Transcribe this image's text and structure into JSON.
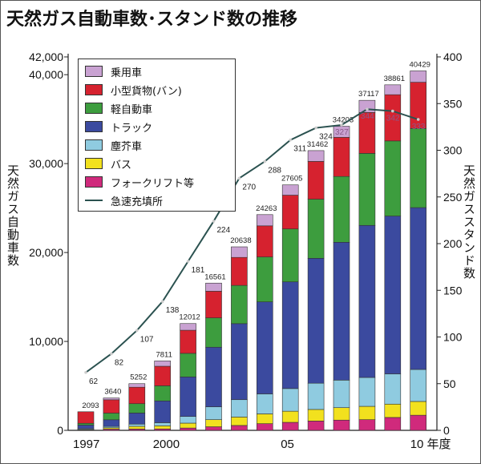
{
  "title": "天然ガス自動車数･スタンド数の推移",
  "chart_data": {
    "type": "bar",
    "title": "天然ガス自動車数･スタンド数の推移",
    "categories": [
      "1997",
      "1998",
      "1999",
      "2000",
      "2001",
      "2002",
      "2003",
      "2004",
      "2005",
      "2006",
      "2007",
      "2008",
      "2009",
      "2010"
    ],
    "x_tick_labels": [
      "1997",
      "2000",
      "05",
      "10 年度"
    ],
    "x_tick_index": [
      0,
      3,
      8,
      13
    ],
    "ylabel_left": "天然ガス自動車数",
    "ylabel_right": "天然ガススタンド数",
    "ylim_left": [
      0,
      42000
    ],
    "ylim_right": [
      0,
      400
    ],
    "left_ticks": [
      "0",
      "10,000",
      "20,000",
      "30,000",
      "40,000",
      "42,000"
    ],
    "left_tick_values": [
      0,
      10000,
      20000,
      30000,
      40000,
      42000
    ],
    "right_ticks": [
      0,
      50,
      100,
      150,
      200,
      250,
      300,
      350,
      400
    ],
    "stacked": true,
    "legend_position": "top-left",
    "grid": false,
    "series": [
      {
        "name": "フォークリフト等",
        "color": "#d02a7c",
        "values": [
          40,
          140,
          150,
          160,
          260,
          400,
          550,
          750,
          900,
          1050,
          1150,
          1200,
          1450,
          1700
        ]
      },
      {
        "name": "バス",
        "color": "#f2e11e",
        "values": [
          50,
          150,
          300,
          350,
          550,
          800,
          950,
          1100,
          1250,
          1300,
          1400,
          1500,
          1500,
          1550
        ]
      },
      {
        "name": "塵芥車",
        "color": "#8fcbe0",
        "values": [
          100,
          150,
          250,
          350,
          750,
          1450,
          1950,
          2250,
          2550,
          2950,
          3100,
          3250,
          3400,
          3600
        ]
      },
      {
        "name": "トラック",
        "color": "#3b4a9f",
        "values": [
          400,
          750,
          1250,
          2450,
          4450,
          6700,
          8550,
          10350,
          12000,
          14050,
          15503,
          17100,
          17750,
          18200
        ]
      },
      {
        "name": "軽自動車",
        "color": "#3d9d3e",
        "values": [
          200,
          750,
          1050,
          1700,
          2650,
          3300,
          4300,
          5050,
          5950,
          6650,
          7400,
          8100,
          8450,
          8900
        ]
      },
      {
        "name": "小型貨物(バン)",
        "color": "#d6222f",
        "values": [
          1303,
          1500,
          1850,
          2200,
          2600,
          3000,
          3150,
          3500,
          3800,
          4250,
          4400,
          4600,
          5200,
          5200
        ]
      },
      {
        "name": "乗用車",
        "color": "#c9a2d2",
        "values": [
          0,
          200,
          400,
          600,
          750,
          911,
          1188,
          1263,
          1155,
          1212,
          1250,
          1367,
          1111,
          1279
        ]
      }
    ],
    "totals": [
      2093,
      3640,
      5252,
      7811,
      12012,
      16561,
      20638,
      24263,
      27605,
      31462,
      34203,
      37117,
      38861,
      40429
    ],
    "line_series": {
      "name": "急速充填所",
      "color": "#2b5250",
      "axis": "right",
      "values": [
        62,
        82,
        107,
        138,
        181,
        224,
        270,
        288,
        311,
        324,
        327,
        344,
        342,
        333
      ]
    },
    "legend_order": [
      "乗用車",
      "小型貨物(バン)",
      "軽自動車",
      "トラック",
      "塵芥車",
      "バス",
      "フォークリフト等",
      "急速充填所"
    ]
  }
}
